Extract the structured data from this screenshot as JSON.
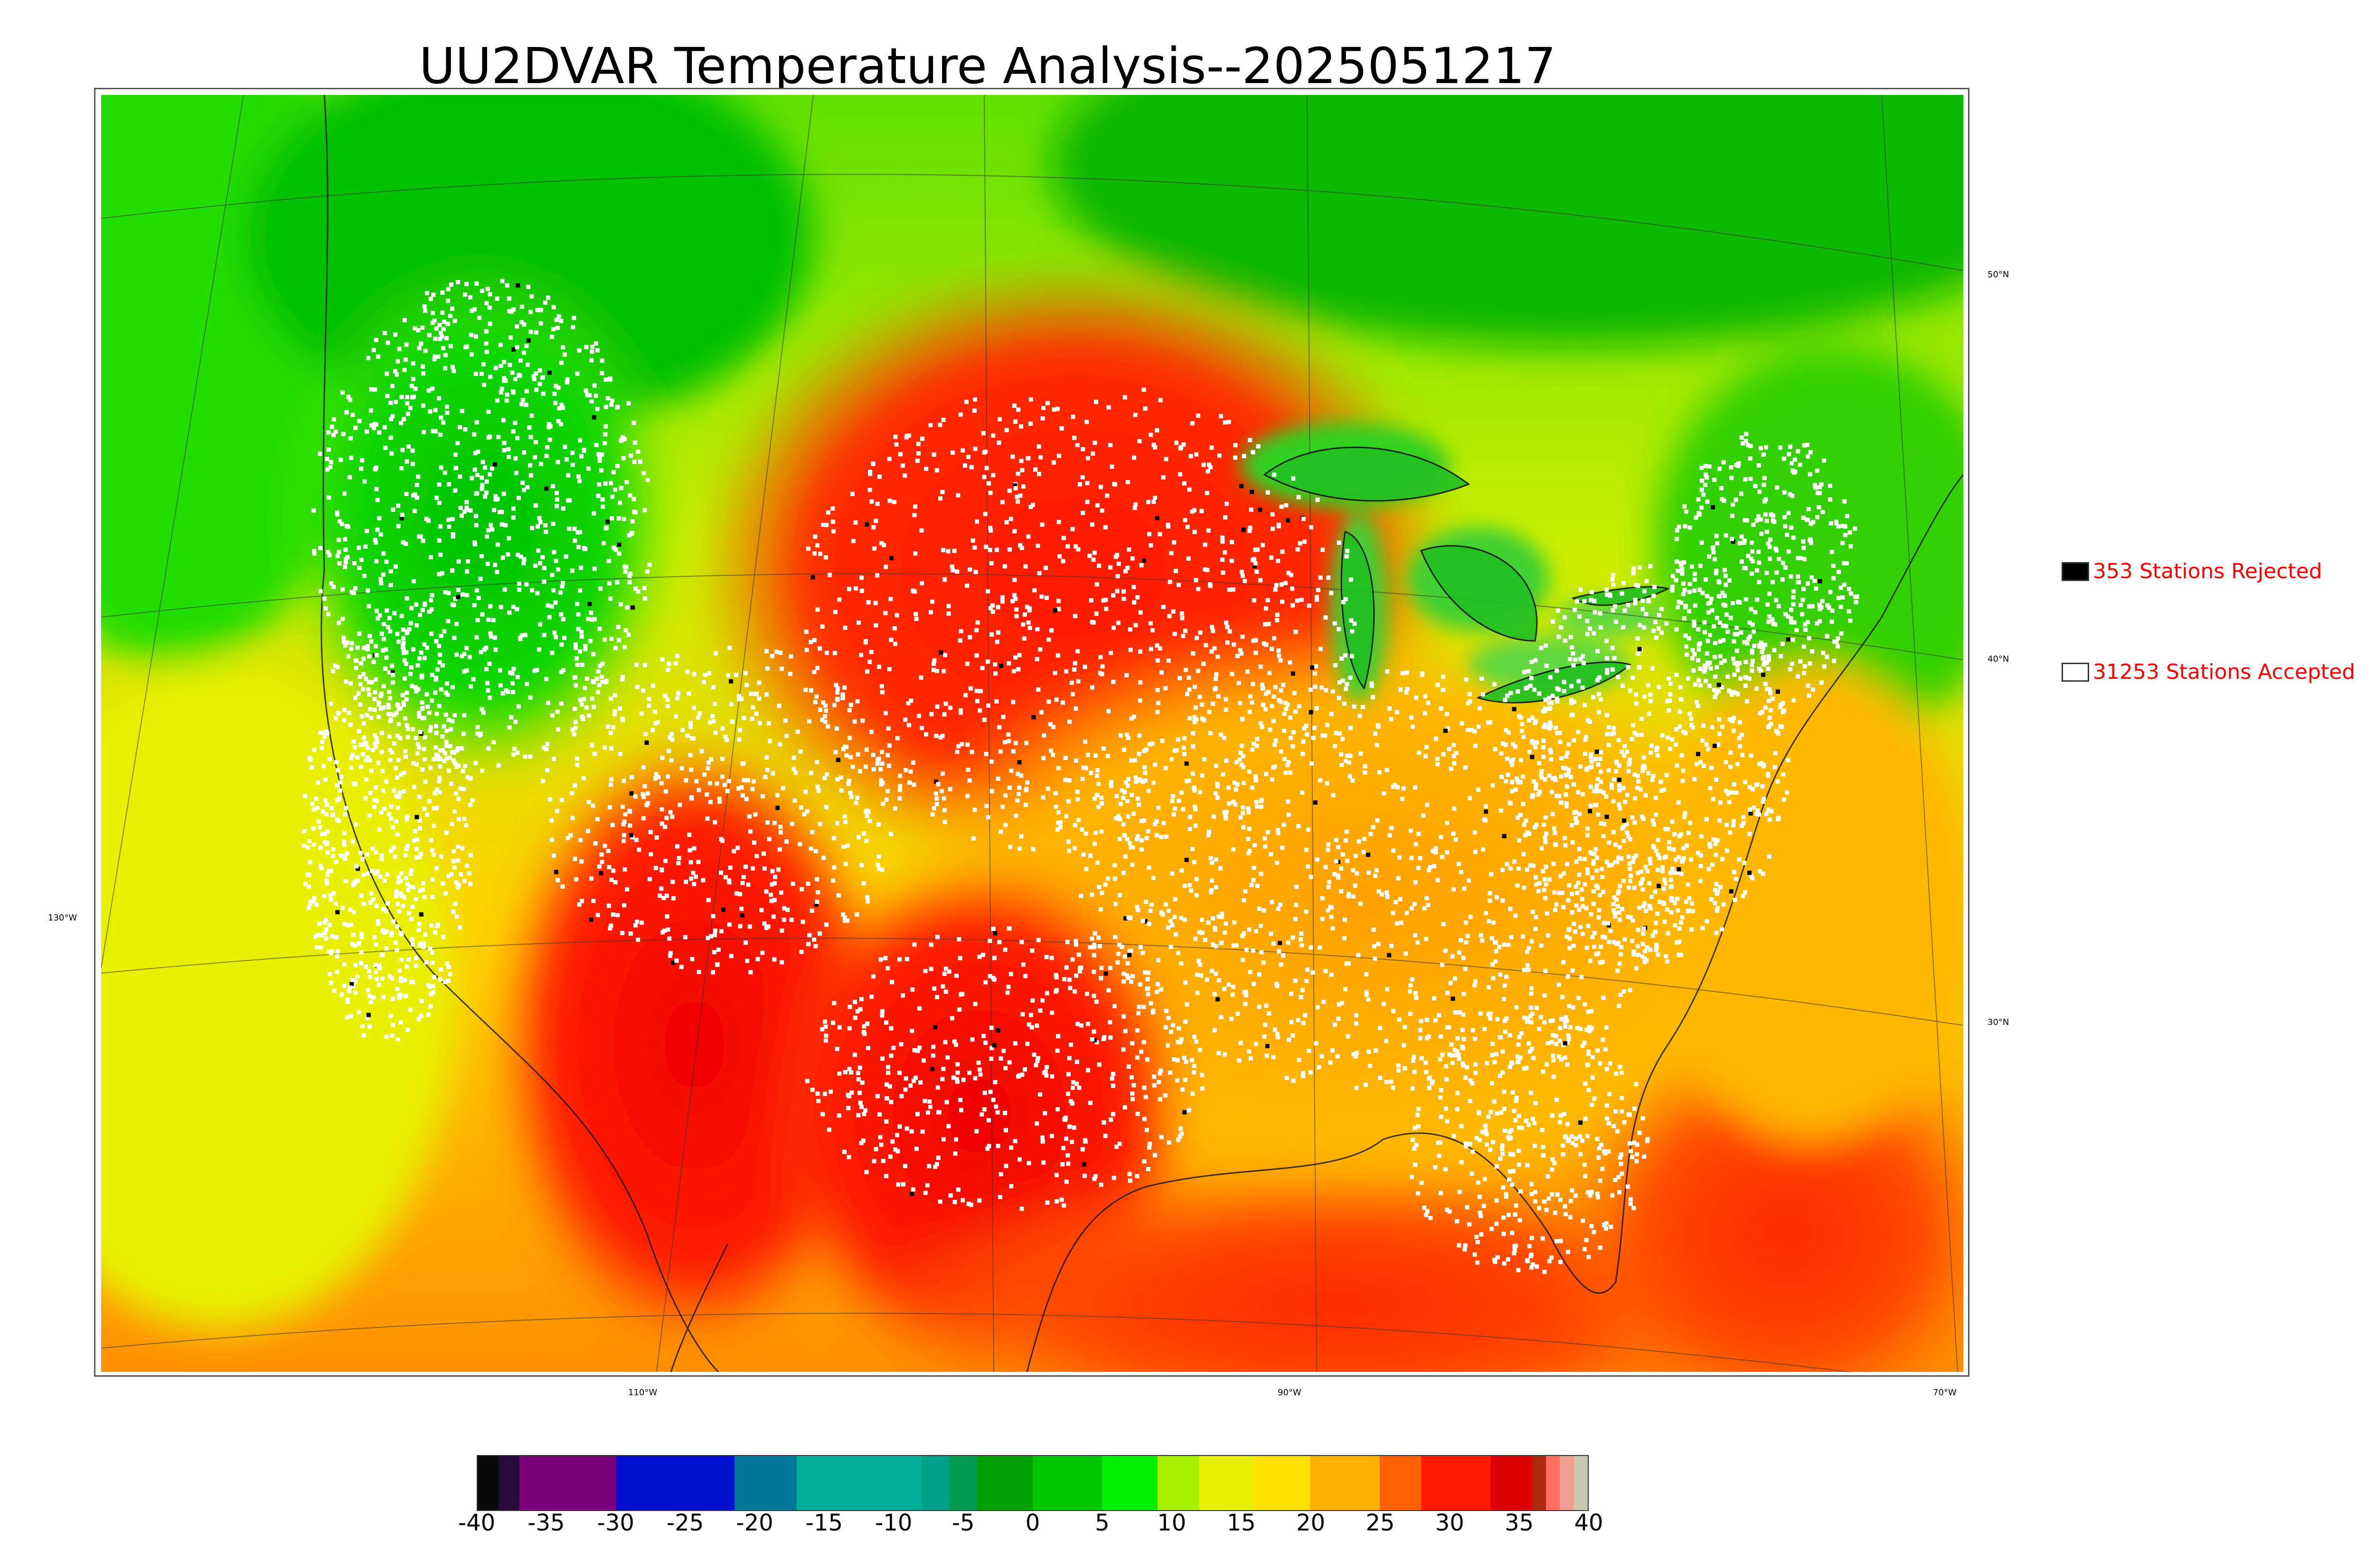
{
  "title": "UU2DVAR Temperature Analysis--2025051217",
  "legend": {
    "rejected": {
      "count_label": "353 Stations Rejected",
      "swatch_color": "#000000"
    },
    "accepted": {
      "count_label": "31253 Stations Accepted",
      "swatch_color": "#ffffff"
    }
  },
  "graticule": {
    "lon_labels": [
      "110°W",
      "90°W",
      "70°W"
    ],
    "lat_labels": [
      "50°N",
      "40°N",
      "30°N"
    ],
    "west_label": "130°W"
  },
  "colorbar": {
    "ticks": [
      "-40",
      "-35",
      "-30",
      "-25",
      "-20",
      "-15",
      "-10",
      "-5",
      "0",
      "5",
      "10",
      "15",
      "20",
      "25",
      "30",
      "35",
      "40"
    ],
    "range": [
      -40,
      40
    ],
    "segments": [
      {
        "from": -40,
        "to": -38.5,
        "color": "#0a0a0a"
      },
      {
        "from": -38.5,
        "to": -37,
        "color": "#2a0a3a"
      },
      {
        "from": -37,
        "to": -30,
        "color": "#7a007a"
      },
      {
        "from": -30,
        "to": -21.5,
        "color": "#0010cc"
      },
      {
        "from": -21.5,
        "to": -17,
        "color": "#00789a"
      },
      {
        "from": -17,
        "to": -8,
        "color": "#00ae9a"
      },
      {
        "from": -8,
        "to": -6,
        "color": "#00a08a"
      },
      {
        "from": -6,
        "to": -4,
        "color": "#009a50"
      },
      {
        "from": -4,
        "to": 0,
        "color": "#00a000"
      },
      {
        "from": 0,
        "to": 5,
        "color": "#00c800"
      },
      {
        "from": 5,
        "to": 9,
        "color": "#00f000"
      },
      {
        "from": 9,
        "to": 12,
        "color": "#a8f000"
      },
      {
        "from": 12,
        "to": 16,
        "color": "#e6f000"
      },
      {
        "from": 16,
        "to": 20,
        "color": "#ffe000"
      },
      {
        "from": 20,
        "to": 25,
        "color": "#ffb000"
      },
      {
        "from": 25,
        "to": 28,
        "color": "#ff6000"
      },
      {
        "from": 28,
        "to": 33,
        "color": "#ff1a00"
      },
      {
        "from": 33,
        "to": 36,
        "color": "#dd0000"
      },
      {
        "from": 36,
        "to": 37,
        "color": "#aa2a10"
      },
      {
        "from": 37,
        "to": 38,
        "color": "#ff7060"
      },
      {
        "from": 38,
        "to": 39,
        "color": "#f0a090"
      },
      {
        "from": 39,
        "to": 40,
        "color": "#c8c8b0"
      }
    ]
  }
}
